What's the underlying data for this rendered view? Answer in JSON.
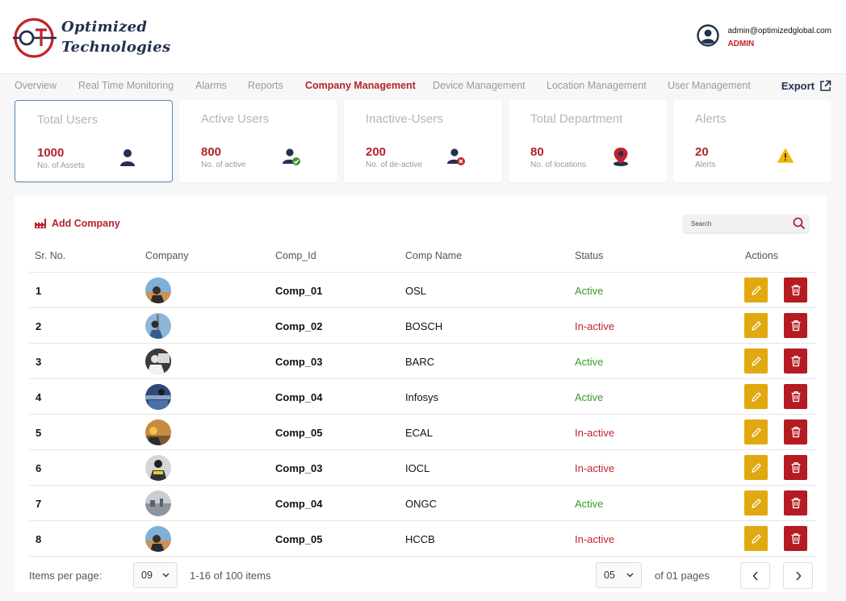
{
  "header": {
    "logo_line1": "Optimized",
    "logo_line2": "Technologies",
    "user_email": "admin@optimizedglobal.com",
    "user_role": "ADMIN"
  },
  "nav": {
    "items": [
      "Overview",
      "Real Time Monitoring",
      "Alarms",
      "Reports",
      "Company Management",
      "Device Management",
      "Location Management",
      "User Management"
    ],
    "active": "Company Management",
    "export_label": "Export"
  },
  "cards": [
    {
      "title": "Total Users",
      "value": "1000",
      "sub": "No. of Assets",
      "icon": "user-icon"
    },
    {
      "title": "Active Users",
      "value": "800",
      "sub": "No. of active",
      "icon": "user-check-icon"
    },
    {
      "title": "Inactive-Users",
      "value": "200",
      "sub": "No. of de-active",
      "icon": "user-x-icon"
    },
    {
      "title": "Total Department",
      "value": "80",
      "sub": "No. of locations",
      "icon": "location-pin-icon"
    },
    {
      "title": "Alerts",
      "value": "20",
      "sub": "Alerts",
      "icon": "warning-icon"
    }
  ],
  "table": {
    "add_label": "Add Company",
    "search_placeholder": "Search",
    "headers": [
      "Sr. No.",
      "Company",
      "Comp_Id",
      "Comp Name",
      "Status",
      "Actions"
    ],
    "rows": [
      {
        "sr": "1",
        "comp_id": "Comp_01",
        "name": "OSL",
        "status": "Active"
      },
      {
        "sr": "2",
        "comp_id": "Comp_02",
        "name": "BOSCH",
        "status": "In-active"
      },
      {
        "sr": "3",
        "comp_id": "Comp_03",
        "name": "BARC",
        "status": "Active"
      },
      {
        "sr": "4",
        "comp_id": "Comp_04",
        "name": "Infosys",
        "status": "Active"
      },
      {
        "sr": "5",
        "comp_id": "Comp_05",
        "name": "ECAL",
        "status": "In-active"
      },
      {
        "sr": "6",
        "comp_id": "Comp_03",
        "name": "IOCL",
        "status": "In-active"
      },
      {
        "sr": "7",
        "comp_id": "Comp_04",
        "name": "ONGC",
        "status": "Active"
      },
      {
        "sr": "8",
        "comp_id": "Comp_05",
        "name": "HCCB",
        "status": "In-active"
      }
    ]
  },
  "pagination": {
    "items_per_page_label": "Items per page:",
    "items_per_page": "09",
    "range_text": "1-16 of 100 items",
    "page": "05",
    "pages_text": "of 01 pages"
  },
  "colors": {
    "brand_red": "#b3232d",
    "navy": "#23304f",
    "edit": "#e2a80f",
    "delete": "#b51b22",
    "active": "#3a9a2a"
  }
}
